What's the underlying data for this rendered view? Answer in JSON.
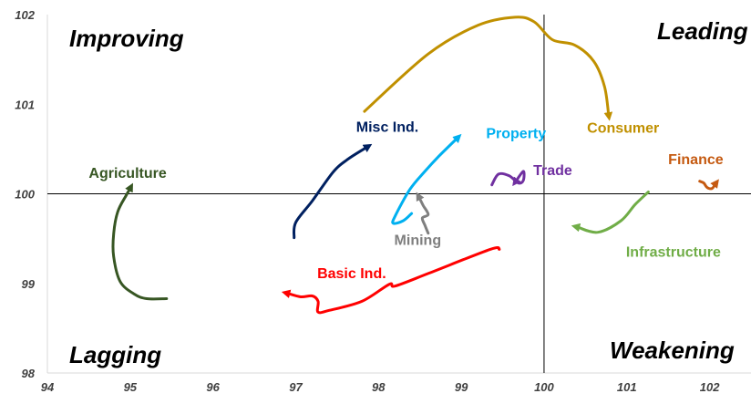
{
  "chart_data": {
    "type": "line",
    "title": "",
    "xlabel": "",
    "ylabel": "",
    "xlim": [
      94,
      102.5
    ],
    "ylim": [
      98,
      102
    ],
    "x_ticks": [
      94,
      95,
      96,
      97,
      98,
      99,
      100,
      101,
      102
    ],
    "y_ticks": [
      98,
      99,
      100,
      101,
      102
    ],
    "reference_lines": {
      "x": 100,
      "y": 100
    },
    "quadrants": {
      "top_left": "Improving",
      "top_right": "Leading",
      "bottom_left": "Lagging",
      "bottom_right": "Weakening"
    },
    "grid": false,
    "series": [
      {
        "name": "Consumer",
        "color": "#C09000",
        "points": [
          [
            97.83,
            100.92
          ],
          [
            98.6,
            101.56
          ],
          [
            99.2,
            101.88
          ],
          [
            99.65,
            101.97
          ],
          [
            99.88,
            101.92
          ],
          [
            100.1,
            101.72
          ],
          [
            100.37,
            101.66
          ],
          [
            100.6,
            101.48
          ],
          [
            100.73,
            101.2
          ],
          [
            100.78,
            100.88
          ]
        ]
      },
      {
        "name": "Misc Ind.",
        "color": "#002060",
        "points": [
          [
            96.98,
            99.51
          ],
          [
            97.0,
            99.68
          ],
          [
            97.2,
            99.92
          ],
          [
            97.45,
            100.24
          ],
          [
            97.62,
            100.38
          ],
          [
            97.86,
            100.52
          ]
        ]
      },
      {
        "name": "Property",
        "color": "#00B0F0",
        "points": [
          [
            98.4,
            99.78
          ],
          [
            98.3,
            99.7
          ],
          [
            98.18,
            99.67
          ],
          [
            98.2,
            99.75
          ],
          [
            98.38,
            100.05
          ],
          [
            98.56,
            100.25
          ],
          [
            98.73,
            100.42
          ],
          [
            98.95,
            100.62
          ]
        ]
      },
      {
        "name": "Agriculture",
        "color": "#375623",
        "points": [
          [
            95.44,
            98.83
          ],
          [
            95.2,
            98.83
          ],
          [
            95.05,
            98.88
          ],
          [
            94.88,
            99.02
          ],
          [
            94.8,
            99.3
          ],
          [
            94.8,
            99.55
          ],
          [
            94.85,
            99.8
          ],
          [
            94.95,
            99.98
          ],
          [
            95.0,
            100.06
          ]
        ]
      },
      {
        "name": "Mining",
        "color": "#7F7F7F",
        "points": [
          [
            98.6,
            99.56
          ],
          [
            98.56,
            99.65
          ],
          [
            98.53,
            99.73
          ],
          [
            98.6,
            99.77
          ],
          [
            98.54,
            99.87
          ],
          [
            98.49,
            99.96
          ]
        ]
      },
      {
        "name": "Trade",
        "color": "#7030A0",
        "points": [
          [
            99.37,
            100.1
          ],
          [
            99.45,
            100.22
          ],
          [
            99.58,
            100.2
          ],
          [
            99.69,
            100.12
          ],
          [
            99.75,
            100.15
          ],
          [
            99.75,
            100.25
          ],
          [
            99.66,
            100.14
          ]
        ]
      },
      {
        "name": "Finance",
        "color": "#C55A11",
        "points": [
          [
            101.88,
            100.14
          ],
          [
            101.93,
            100.12
          ],
          [
            101.97,
            100.07
          ],
          [
            102.03,
            100.06
          ],
          [
            102.07,
            100.11
          ]
        ]
      },
      {
        "name": "Infrastructure",
        "color": "#70AD47",
        "points": [
          [
            101.26,
            100.02
          ],
          [
            101.1,
            99.88
          ],
          [
            100.93,
            99.7
          ],
          [
            100.65,
            99.57
          ],
          [
            100.4,
            99.63
          ]
        ]
      },
      {
        "name": "Basic Ind.",
        "color": "#FF0000",
        "points": [
          [
            99.46,
            99.38
          ],
          [
            99.35,
            99.38
          ],
          [
            98.6,
            99.11
          ],
          [
            98.2,
            98.97
          ],
          [
            98.13,
            98.99
          ],
          [
            97.8,
            98.8
          ],
          [
            97.41,
            98.7
          ],
          [
            97.27,
            98.68
          ],
          [
            97.27,
            98.8
          ],
          [
            97.2,
            98.86
          ],
          [
            97.06,
            98.85
          ],
          [
            96.9,
            98.89
          ]
        ]
      }
    ],
    "labels": [
      {
        "text": "Consumer",
        "color": "#C09000",
        "x": 100.52,
        "y": 100.68
      },
      {
        "text": "Misc Ind.",
        "color": "#002060",
        "x": 97.73,
        "y": 100.69
      },
      {
        "text": "Property",
        "color": "#00B0F0",
        "x": 99.3,
        "y": 100.62
      },
      {
        "text": "Agriculture",
        "color": "#375623",
        "x": 94.5,
        "y": 100.18
      },
      {
        "text": "Mining",
        "color": "#7F7F7F",
        "x": 98.19,
        "y": 99.43
      },
      {
        "text": "Trade",
        "color": "#7030A0",
        "x": 99.87,
        "y": 100.21
      },
      {
        "text": "Finance",
        "color": "#C55A11",
        "x": 101.5,
        "y": 100.33
      },
      {
        "text": "Infrastructure",
        "color": "#70AD47",
        "x": 100.99,
        "y": 99.3
      },
      {
        "text": "Basic Ind.",
        "color": "#FF0000",
        "x": 97.26,
        "y": 99.06
      }
    ]
  }
}
